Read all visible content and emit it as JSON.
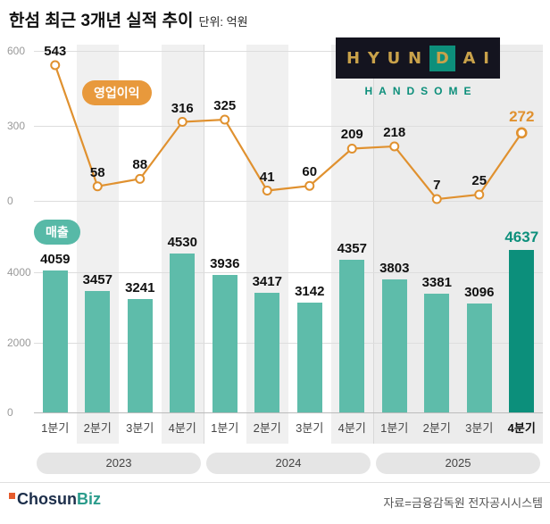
{
  "header": {
    "title": "한섬 최근 3개년 실적 추이",
    "unit": "단위: 억원"
  },
  "logo": {
    "brand": "HYUNDAI",
    "sub": "HANDSOME",
    "teal_letter_index": 4,
    "colors": {
      "background": "#14141f",
      "gold": "#c9a24a",
      "teal": "#0d8f7b"
    }
  },
  "chart_data": {
    "type": "bar",
    "subtype": "combo-line-over-bar",
    "title": "한섬 최근 3개년 실적 추이",
    "unit": "억원",
    "grid": true,
    "legend_position": "inline-badges",
    "categories": [
      "1분기",
      "2분기",
      "3분기",
      "4분기",
      "1분기",
      "2분기",
      "3분기",
      "4분기",
      "1분기",
      "2분기",
      "3분기",
      "4분기"
    ],
    "year_groups": [
      {
        "label": "2023"
      },
      {
        "label": "2024"
      },
      {
        "label": "2025"
      }
    ],
    "series": [
      {
        "name": "영업이익",
        "type": "line",
        "color": "#e0912f",
        "values": [
          543,
          58,
          88,
          316,
          325,
          41,
          60,
          209,
          218,
          7,
          25,
          272
        ],
        "ticks": [
          600,
          300,
          0
        ],
        "max": 600,
        "highlight_last": true,
        "highlight_color": "#e0912f"
      },
      {
        "name": "매출",
        "type": "bar",
        "color": "#5ebcaa",
        "values": [
          4059,
          3457,
          3241,
          4530,
          3936,
          3417,
          3142,
          4357,
          3803,
          3381,
          3096,
          4637
        ],
        "ticks": [
          4000,
          2000,
          0
        ],
        "max": 4000,
        "highlight_last": true,
        "highlight_color": "#0c8f7b"
      }
    ]
  },
  "footer": {
    "brand_a": "Chosun",
    "brand_b": "Biz",
    "source": "자료=금융감독원 전자공시시스템"
  }
}
